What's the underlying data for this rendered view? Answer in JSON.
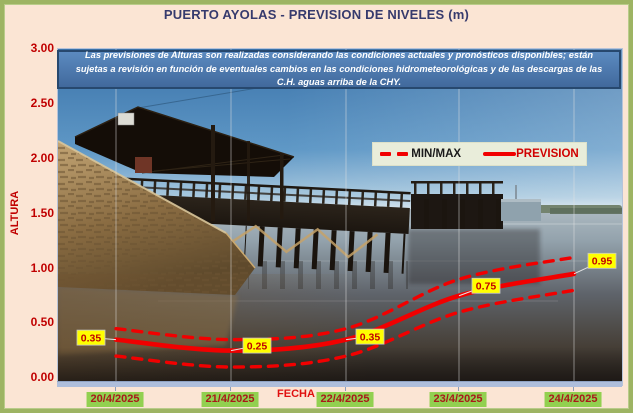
{
  "window": {
    "title": "PUERTO AYOLAS - PREVISION DE NIVELES (m)"
  },
  "disclaimer": "Las previsiones de Alturas son realizadas considerando las condiciones actuales y pronósticos disponibles; están sujetas a revisión en función de eventuales cambios en las condiciones hidrometeorológicas y de las descargas de las C.H. aguas arriba de la CHY.",
  "axes": {
    "y_label": "ALTURA",
    "x_label": "FECHA",
    "y_ticks": [
      "3.00",
      "2.50",
      "2.00",
      "1.50",
      "1.00",
      "0.50",
      "0.00"
    ]
  },
  "legend": {
    "minmax_label": "MIN/MAX",
    "prevision_label": "PREVISION"
  },
  "chart_data": {
    "type": "line",
    "title": "PUERTO AYOLAS - PREVISION DE NIVELES (m)",
    "xlabel": "FECHA",
    "ylabel": "ALTURA",
    "ylim": [
      0.0,
      3.0
    ],
    "ytick_step": 0.5,
    "grid": "vertical-only",
    "legend_position": "upper-right-inside",
    "categories": [
      "20/4/2025",
      "21/4/2025",
      "22/4/2025",
      "23/4/2025",
      "24/4/2025"
    ],
    "series": [
      {
        "name": "PREVISION",
        "style": "solid",
        "color": "#f10000",
        "values": [
          0.35,
          0.25,
          0.35,
          0.75,
          0.95
        ],
        "labels": [
          "0.35",
          "0.25",
          "0.35",
          "0.75",
          "0.95"
        ]
      },
      {
        "name": "MAX",
        "style": "dashed",
        "color": "#f10000",
        "values": [
          0.45,
          0.35,
          0.45,
          0.9,
          1.1
        ]
      },
      {
        "name": "MIN",
        "style": "dashed",
        "color": "#f10000",
        "values": [
          0.2,
          0.1,
          0.2,
          0.6,
          0.8
        ]
      }
    ]
  },
  "colors": {
    "frame_green": "#9db463",
    "background_cream": "#fbe5d4",
    "title_navy": "#363a6d",
    "axis_red": "#c00000",
    "line_red": "#f10000",
    "data_label_bg": "#ffff00",
    "date_label_bg": "#92d050",
    "note_bg": "#4a78ae"
  }
}
